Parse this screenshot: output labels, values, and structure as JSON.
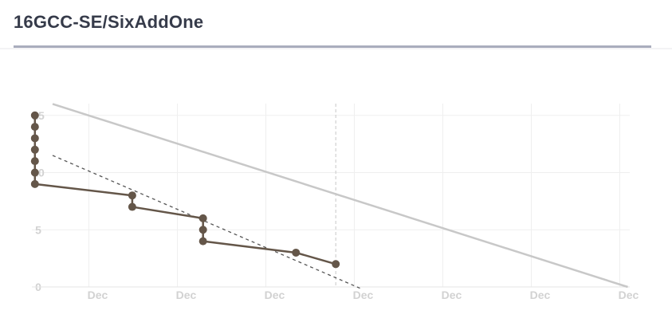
{
  "header": {
    "title": "16GCC-SE/SixAddOne"
  },
  "chart_data": {
    "type": "line",
    "title": "",
    "xlabel": "",
    "ylabel": "",
    "ylim": [
      0,
      15
    ],
    "yticks": [
      0,
      5,
      10,
      15
    ],
    "xlim": [
      0,
      6.5
    ],
    "xticks": [
      {
        "x": 0.5,
        "label": "Dec"
      },
      {
        "x": 1.5,
        "label": "Dec"
      },
      {
        "x": 2.5,
        "label": "Dec"
      },
      {
        "x": 3.5,
        "label": "Dec"
      },
      {
        "x": 4.5,
        "label": "Dec"
      },
      {
        "x": 5.5,
        "label": "Dec"
      },
      {
        "x": 6.5,
        "label": "Dec"
      }
    ],
    "grid": true,
    "series": [
      {
        "kind": "ideal",
        "color": "#c8c8c8",
        "style": "solid",
        "points": [
          [
            0,
            16
          ],
          [
            6.5,
            0
          ]
        ]
      },
      {
        "kind": "trend",
        "color": "#555555",
        "style": "dashed",
        "points": [
          [
            0,
            11.5
          ],
          [
            3.5,
            -0.2
          ]
        ]
      },
      {
        "kind": "actual",
        "color": "#645649",
        "style": "solid",
        "points": [
          [
            -0.2,
            15
          ],
          [
            -0.2,
            14
          ],
          [
            -0.2,
            13
          ],
          [
            -0.2,
            12
          ],
          [
            -0.2,
            11
          ],
          [
            -0.2,
            10
          ],
          [
            -0.2,
            9
          ],
          [
            0.9,
            8
          ],
          [
            0.9,
            7
          ],
          [
            1.7,
            6
          ],
          [
            1.7,
            5
          ],
          [
            1.7,
            4
          ],
          [
            2.75,
            3
          ],
          [
            3.2,
            2
          ]
        ],
        "markers": [
          [
            -0.2,
            15
          ],
          [
            -0.2,
            14
          ],
          [
            -0.2,
            13
          ],
          [
            -0.2,
            12
          ],
          [
            -0.2,
            11
          ],
          [
            -0.2,
            10
          ],
          [
            -0.2,
            9
          ],
          [
            0.9,
            8
          ],
          [
            0.9,
            7
          ],
          [
            1.7,
            6
          ],
          [
            1.7,
            5
          ],
          [
            1.7,
            4
          ],
          [
            2.75,
            3
          ],
          [
            3.2,
            2
          ]
        ]
      }
    ],
    "today_marker": {
      "x": 3.2,
      "color": "#c8c8c8",
      "style": "dashed"
    }
  }
}
